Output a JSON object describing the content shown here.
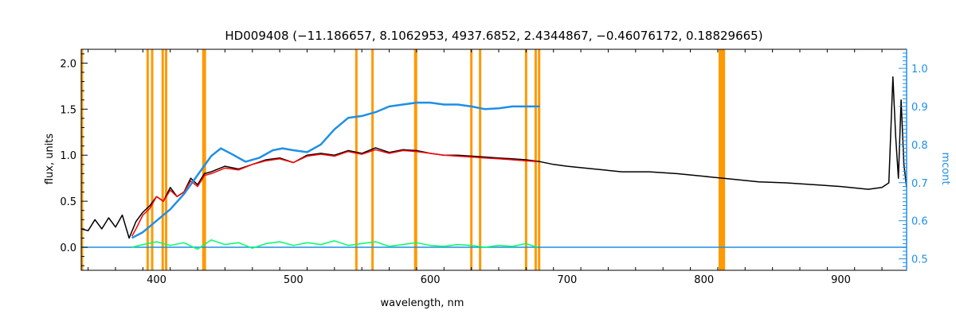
{
  "chart_data": {
    "type": "line",
    "title": "HD009408   (−11.186657, 8.1062953, 4937.6852, 2.4344867, −0.46076172, 0.18829665)",
    "xlabel": "wavelength, nm",
    "ylabel": "flux, units",
    "y2label": "mcont",
    "xlim": [
      345,
      948
    ],
    "ylim": [
      -0.25,
      2.15
    ],
    "y2lim": [
      0.47,
      1.05
    ],
    "xticks": [
      400,
      500,
      600,
      700,
      800,
      900
    ],
    "yticks": [
      0.0,
      0.5,
      1.0,
      1.5,
      2.0
    ],
    "y2ticks": [
      0.5,
      0.6,
      0.7,
      0.8,
      0.9,
      1.0
    ],
    "xtick_labels": [
      "400",
      "500",
      "600",
      "700",
      "800",
      "900"
    ],
    "ytick_labels": [
      "0.0",
      "0.5",
      "1.0",
      "1.5",
      "2.0"
    ],
    "y2tick_labels": [
      "0.5",
      "0.6",
      "0.7",
      "0.8",
      "0.9",
      "1.0"
    ],
    "colors": {
      "observed": "#000000",
      "model": "#ff0000",
      "residual": "#00ff66",
      "continuum": "#1f8fe6",
      "mask": "#ff9900",
      "axis2": "#1f8fe6"
    },
    "mask_lines_nm": [
      345.5,
      393.5,
      396.8,
      404.5,
      407.0,
      434.2,
      435.3,
      546.0,
      557.8,
      589.0,
      589.6,
      630.0,
      636.4,
      670.0,
      677.0,
      679.5,
      811.5,
      812.5,
      813.5,
      814.5
    ],
    "series": [
      {
        "role": "observed",
        "x": [
          345,
          350,
          355,
          360,
          365,
          370,
          375,
          380,
          385,
          390,
          395,
          400,
          405,
          410,
          415,
          420,
          425,
          430,
          435,
          440,
          445,
          450,
          460,
          470,
          480,
          490,
          500,
          510,
          520,
          530,
          540,
          550,
          560,
          570,
          580,
          590,
          600,
          610,
          620,
          630,
          640,
          650,
          660,
          670,
          680,
          690,
          700,
          720,
          740,
          760,
          780,
          800,
          820,
          840,
          860,
          880,
          900,
          920,
          930,
          935,
          938,
          940,
          942,
          944,
          946,
          948
        ],
        "y": [
          0.2,
          0.18,
          0.3,
          0.2,
          0.32,
          0.22,
          0.35,
          0.1,
          0.28,
          0.38,
          0.45,
          0.55,
          0.5,
          0.65,
          0.55,
          0.6,
          0.75,
          0.68,
          0.8,
          0.82,
          0.85,
          0.88,
          0.85,
          0.9,
          0.95,
          0.97,
          0.92,
          1.0,
          1.02,
          1.0,
          1.05,
          1.02,
          1.08,
          1.03,
          1.06,
          1.05,
          1.02,
          1.0,
          1.0,
          0.99,
          0.98,
          0.97,
          0.96,
          0.95,
          0.93,
          0.9,
          0.88,
          0.85,
          0.82,
          0.82,
          0.8,
          0.77,
          0.74,
          0.71,
          0.7,
          0.68,
          0.66,
          0.63,
          0.65,
          0.7,
          1.85,
          1.2,
          0.75,
          1.6,
          0.9,
          0.65
        ]
      },
      {
        "role": "model",
        "x": [
          382,
          385,
          390,
          395,
          400,
          405,
          410,
          415,
          420,
          425,
          430,
          435,
          440,
          450,
          460,
          470,
          480,
          490,
          500,
          510,
          520,
          530,
          540,
          550,
          560,
          570,
          580,
          590,
          600,
          610,
          620,
          630,
          640,
          650,
          660,
          670,
          678
        ],
        "y": [
          0.12,
          0.2,
          0.35,
          0.42,
          0.55,
          0.5,
          0.62,
          0.55,
          0.6,
          0.72,
          0.66,
          0.78,
          0.8,
          0.86,
          0.84,
          0.9,
          0.94,
          0.96,
          0.92,
          0.99,
          1.01,
          0.99,
          1.04,
          1.01,
          1.06,
          1.02,
          1.05,
          1.04,
          1.02,
          1.0,
          0.99,
          0.98,
          0.97,
          0.96,
          0.95,
          0.94,
          0.93
        ]
      },
      {
        "role": "residual",
        "x": [
          382,
          390,
          400,
          410,
          420,
          430,
          440,
          450,
          460,
          470,
          480,
          490,
          500,
          510,
          520,
          530,
          540,
          550,
          560,
          570,
          580,
          590,
          600,
          610,
          620,
          630,
          640,
          650,
          660,
          670,
          678
        ],
        "y": [
          0.0,
          0.03,
          0.06,
          0.02,
          0.05,
          -0.02,
          0.08,
          0.03,
          0.05,
          -0.01,
          0.04,
          0.06,
          0.02,
          0.05,
          0.03,
          0.07,
          0.02,
          0.04,
          0.06,
          0.01,
          0.03,
          0.05,
          0.02,
          0.01,
          0.03,
          0.02,
          0.0,
          0.02,
          0.01,
          0.04,
          0.0
        ]
      },
      {
        "role": "continuum",
        "axis": "y2",
        "x": [
          382,
          390,
          400,
          410,
          420,
          430,
          440,
          447,
          455,
          465,
          475,
          485,
          492,
          500,
          510,
          520,
          530,
          540,
          550,
          560,
          570,
          580,
          590,
          600,
          610,
          620,
          630,
          640,
          650,
          660,
          670,
          680
        ],
        "y": [
          0.555,
          0.57,
          0.6,
          0.63,
          0.67,
          0.72,
          0.77,
          0.79,
          0.775,
          0.755,
          0.765,
          0.785,
          0.79,
          0.785,
          0.78,
          0.8,
          0.84,
          0.87,
          0.875,
          0.885,
          0.9,
          0.905,
          0.91,
          0.91,
          0.905,
          0.905,
          0.9,
          0.893,
          0.895,
          0.9,
          0.9,
          0.9
        ]
      },
      {
        "role": "zero-line",
        "x": [
          345,
          948
        ],
        "y": [
          0.0,
          0.0
        ]
      }
    ]
  }
}
